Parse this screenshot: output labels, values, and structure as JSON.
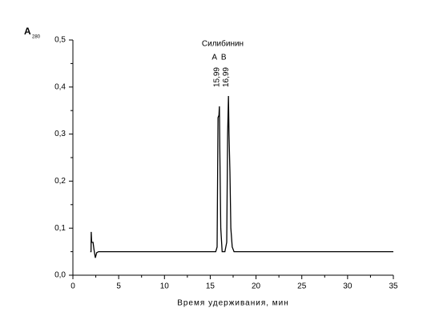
{
  "chart_data": {
    "type": "line",
    "y_label": "A",
    "y_label_sub": "280",
    "x_label": "Время удерживания, мин",
    "annotation": "Силибинин",
    "peaks": [
      {
        "name": "A",
        "value": 15.99,
        "label": "15,99"
      },
      {
        "name": "B",
        "value": 16.99,
        "label": "16,99"
      }
    ],
    "xlim": [
      0,
      35
    ],
    "ylim": [
      0,
      0.5
    ],
    "xticks": [
      0,
      5,
      10,
      15,
      20,
      25,
      30,
      35
    ],
    "yticks": [
      {
        "value": 0,
        "label": "0,0"
      },
      {
        "value": 0.1,
        "label": "0,1"
      },
      {
        "value": 0.2,
        "label": "0,2"
      },
      {
        "value": 0.3,
        "label": "0,3"
      },
      {
        "value": 0.4,
        "label": "0,4"
      },
      {
        "value": 0.5,
        "label": "0,5"
      }
    ],
    "color": "#000000",
    "x": [
      1.9,
      1.98,
      2.0,
      2.05,
      2.2,
      2.3,
      2.45,
      2.6,
      2.8,
      15.6,
      15.75,
      15.85,
      15.95,
      16.0,
      16.05,
      16.15,
      16.3,
      16.6,
      16.8,
      16.9,
      16.99,
      17.05,
      17.15,
      17.25,
      17.4,
      17.6,
      35
    ],
    "values": [
      0.05,
      0.05,
      0.092,
      0.07,
      0.07,
      0.055,
      0.037,
      0.048,
      0.05,
      0.05,
      0.06,
      0.335,
      0.34,
      0.359,
      0.26,
      0.1,
      0.05,
      0.05,
      0.07,
      0.3,
      0.381,
      0.3,
      0.22,
      0.1,
      0.06,
      0.05,
      0.05
    ]
  }
}
